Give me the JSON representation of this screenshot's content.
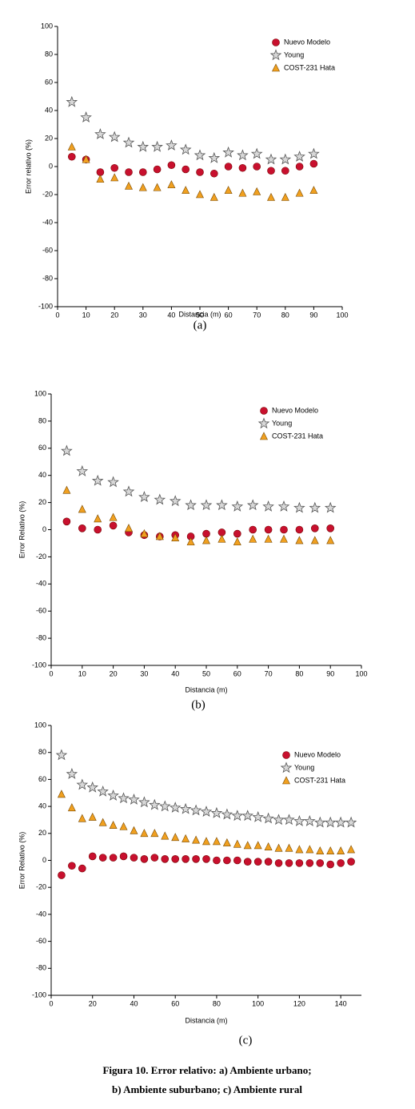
{
  "chart_data": [
    {
      "type": "scatter",
      "label": "(a)",
      "xlabel": "Distancia (m)",
      "ylabel": "Error relativo (%)",
      "x": [
        5,
        10,
        15,
        20,
        25,
        30,
        35,
        40,
        45,
        50,
        55,
        60,
        65,
        70,
        75,
        80,
        85,
        90
      ],
      "xlim": [
        0,
        100
      ],
      "xticks": [
        0,
        10,
        20,
        30,
        40,
        50,
        60,
        70,
        80,
        90,
        100
      ],
      "ylim": [
        -100,
        100
      ],
      "yticks": [
        -100,
        -80,
        -60,
        -40,
        -20,
        0,
        20,
        40,
        60,
        80,
        100
      ],
      "legend": "upper right",
      "series": [
        {
          "name": "Nuevo Modelo",
          "color": "#c8102e",
          "marker": "circle",
          "values": [
            7,
            5,
            -4,
            -1,
            -4,
            -4,
            -2,
            1,
            -2,
            -4,
            -5,
            0,
            -1,
            0,
            -3,
            -3,
            0,
            2
          ]
        },
        {
          "name": "Young",
          "color": "#8c8c8c",
          "marker": "star",
          "values": [
            46,
            35,
            23,
            21,
            17,
            14,
            14,
            15,
            12,
            8,
            6,
            10,
            8,
            9,
            5,
            5,
            7,
            9
          ]
        },
        {
          "name": "COST-231 Hata",
          "color": "#f0a020",
          "marker": "triangle",
          "values": [
            14,
            5,
            -9,
            -8,
            -14,
            -15,
            -15,
            -13,
            -17,
            -20,
            -22,
            -17,
            -19,
            -18,
            -22,
            -22,
            -19,
            -17
          ]
        }
      ]
    },
    {
      "type": "scatter",
      "label": "(b)",
      "xlabel": "Distancia (m)",
      "ylabel": "Error Relativo (%)",
      "x": [
        5,
        10,
        15,
        20,
        25,
        30,
        35,
        40,
        45,
        50,
        55,
        60,
        65,
        70,
        75,
        80,
        85,
        90
      ],
      "xlim": [
        0,
        100
      ],
      "xticks": [
        0,
        10,
        20,
        30,
        40,
        50,
        60,
        70,
        80,
        90,
        100
      ],
      "ylim": [
        -100,
        100
      ],
      "yticks": [
        -100,
        -80,
        -60,
        -40,
        -20,
        0,
        20,
        40,
        60,
        80,
        100
      ],
      "legend": "upper right",
      "series": [
        {
          "name": "Nuevo Modelo",
          "color": "#c8102e",
          "marker": "circle",
          "values": [
            6,
            1,
            0,
            3,
            -2,
            -4,
            -5,
            -4,
            -5,
            -3,
            -2,
            -3,
            0,
            0,
            0,
            0,
            1,
            1
          ]
        },
        {
          "name": "Young",
          "color": "#8c8c8c",
          "marker": "star",
          "values": [
            58,
            43,
            36,
            35,
            28,
            24,
            22,
            21,
            18,
            18,
            18,
            17,
            18,
            17,
            17,
            16,
            16,
            16
          ]
        },
        {
          "name": "COST-231 Hata",
          "color": "#f0a020",
          "marker": "triangle",
          "values": [
            29,
            15,
            8,
            9,
            1,
            -3,
            -5,
            -6,
            -9,
            -8,
            -7,
            -9,
            -7,
            -7,
            -7,
            -8,
            -8,
            -8
          ]
        }
      ]
    },
    {
      "type": "scatter",
      "label": "(c)",
      "xlabel": "Distancia (m)",
      "ylabel": "Error Relativo (%)",
      "x": [
        5,
        10,
        15,
        20,
        25,
        30,
        35,
        40,
        45,
        50,
        55,
        60,
        65,
        70,
        75,
        80,
        85,
        90,
        95,
        100,
        105,
        110,
        115,
        120,
        125,
        130,
        135,
        140,
        145
      ],
      "xlim": [
        0,
        150
      ],
      "xticks": [
        0,
        20,
        40,
        60,
        80,
        100,
        120,
        140
      ],
      "ylim": [
        -100,
        100
      ],
      "yticks": [
        -100,
        -80,
        -60,
        -40,
        -20,
        0,
        20,
        40,
        60,
        80,
        100
      ],
      "legend": "upper right",
      "series": [
        {
          "name": "Nuevo Modelo",
          "color": "#c8102e",
          "marker": "circle",
          "values": [
            -11,
            -4,
            -6,
            3,
            2,
            2,
            3,
            2,
            1,
            2,
            1,
            1,
            1,
            1,
            1,
            0,
            0,
            0,
            -1,
            -1,
            -1,
            -2,
            -2,
            -2,
            -2,
            -2,
            -3,
            -2,
            -1
          ]
        },
        {
          "name": "Young",
          "color": "#8c8c8c",
          "marker": "star",
          "values": [
            78,
            64,
            56,
            54,
            51,
            48,
            46,
            45,
            43,
            41,
            40,
            39,
            38,
            37,
            36,
            35,
            34,
            33,
            33,
            32,
            31,
            30,
            30,
            29,
            29,
            28,
            28,
            28,
            28
          ]
        },
        {
          "name": "COST-231 Hata",
          "color": "#f0a020",
          "marker": "triangle",
          "values": [
            49,
            39,
            31,
            32,
            28,
            26,
            25,
            22,
            20,
            20,
            18,
            17,
            16,
            15,
            14,
            14,
            13,
            12,
            11,
            11,
            10,
            9,
            9,
            8,
            8,
            7,
            7,
            7,
            8
          ]
        }
      ]
    }
  ],
  "caption": [
    "Figura 10. Error relativo: a) Ambiente urbano;",
    "b) Ambiente suburbano; c) Ambiente rural"
  ]
}
